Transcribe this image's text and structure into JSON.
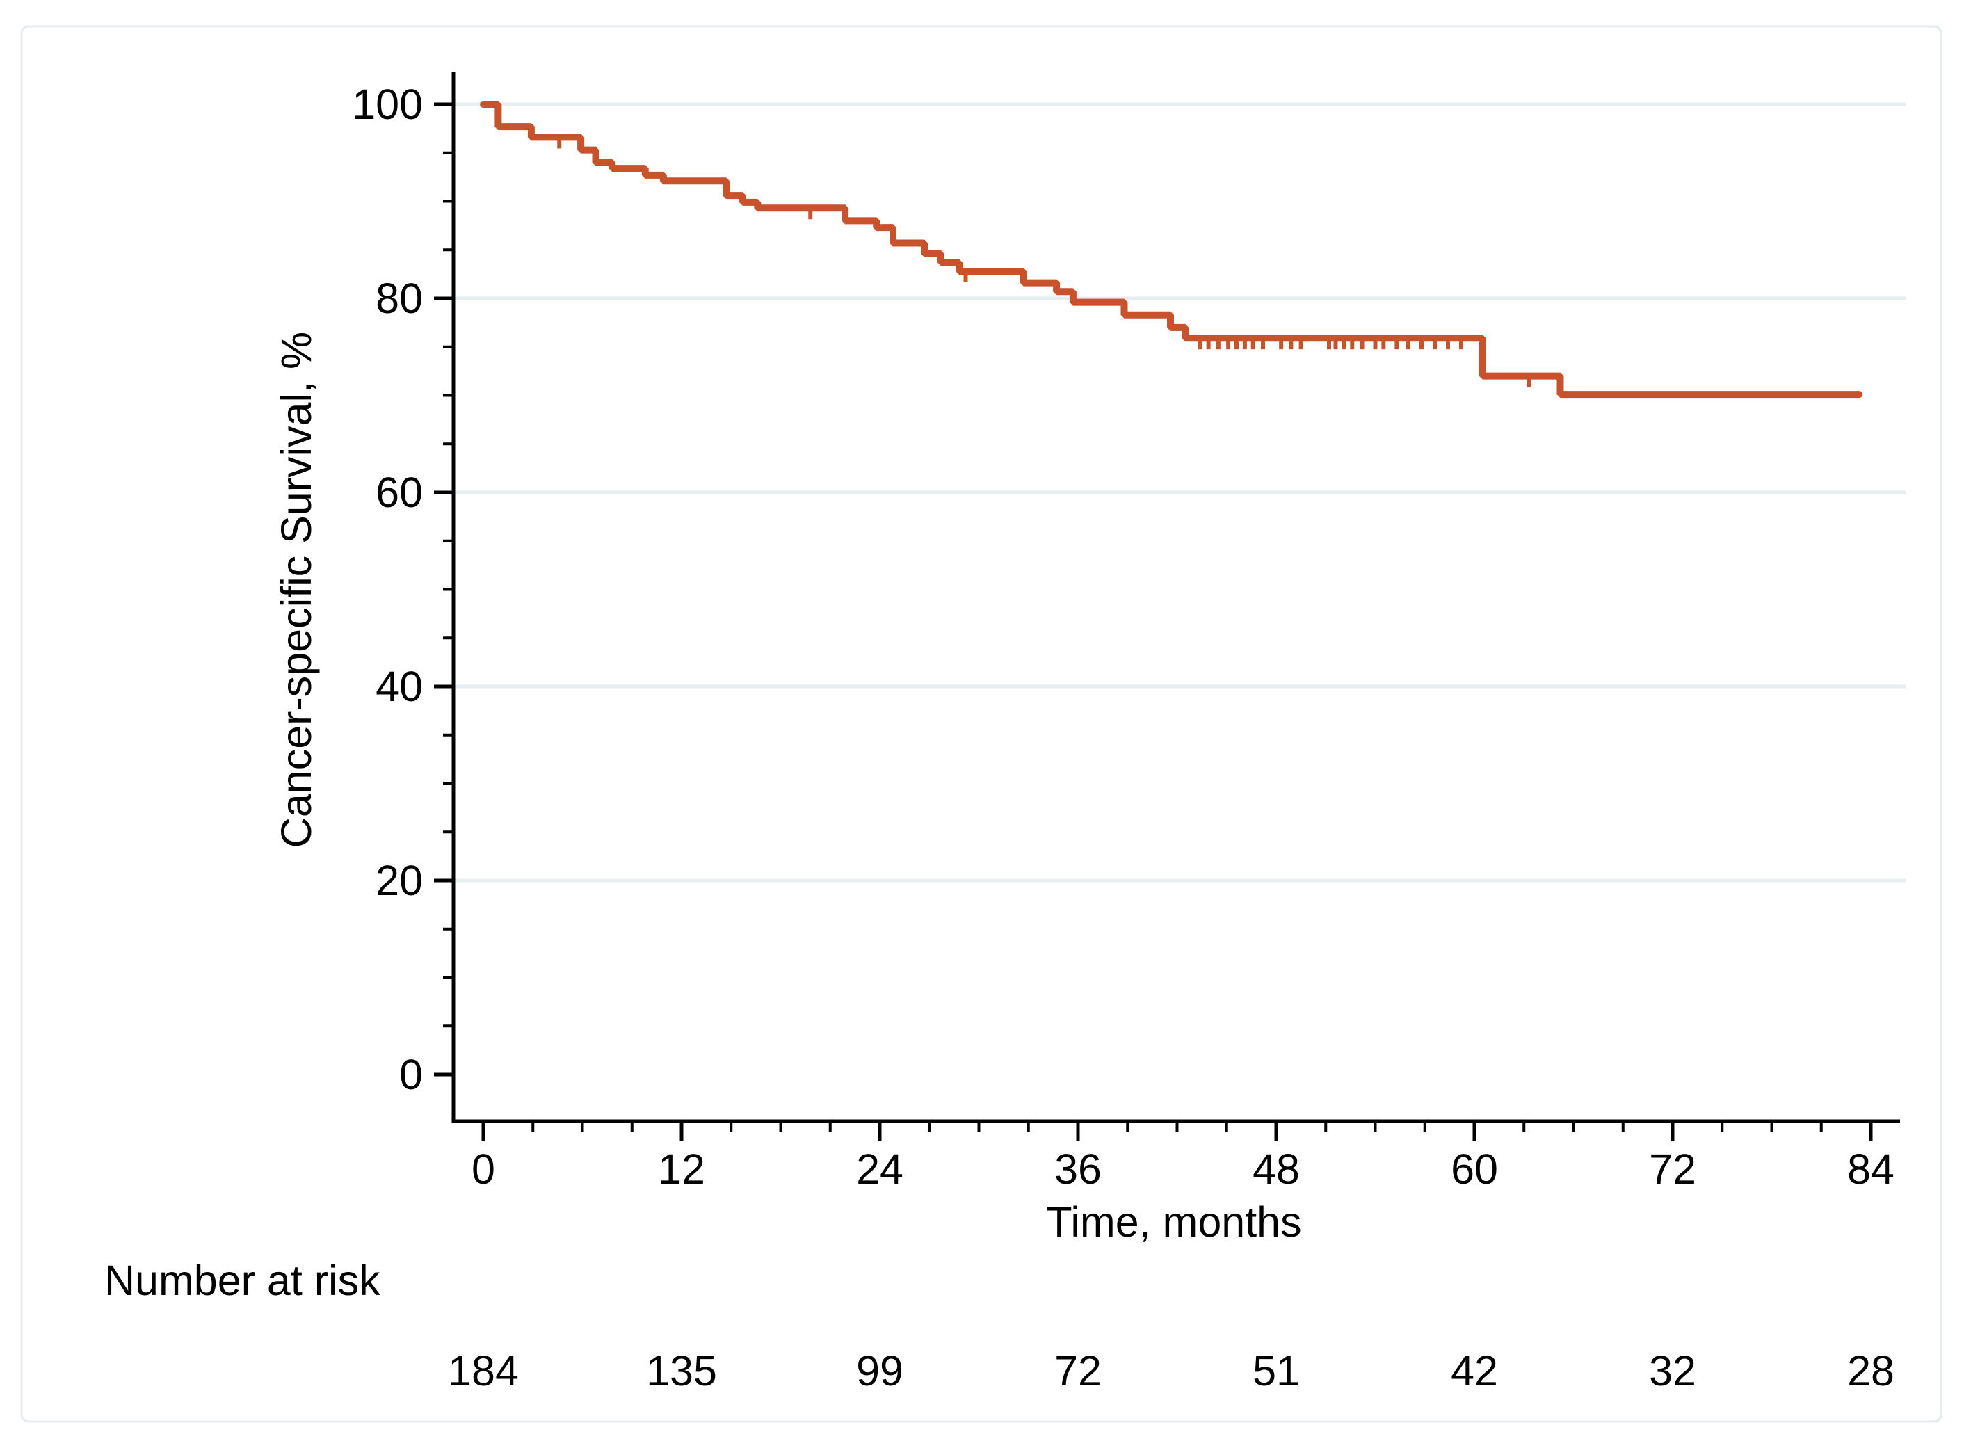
{
  "chart_data": {
    "type": "line",
    "subtype": "kaplan-meier-step",
    "title": "",
    "xlabel": "Time, months",
    "ylabel": "Cancer-specific Survival, %",
    "xlim": [
      0,
      84
    ],
    "ylim": [
      0,
      100
    ],
    "x_major_ticks": [
      0,
      12,
      24,
      36,
      48,
      60,
      72,
      84
    ],
    "x_major_tick_labels": [
      "0",
      "12",
      "24",
      "36",
      "48",
      "60",
      "72",
      "84"
    ],
    "x_minor_tick_interval": 3,
    "y_major_ticks": [
      0,
      20,
      40,
      60,
      80,
      100
    ],
    "y_major_tick_labels": [
      "0",
      "20",
      "40",
      "60",
      "80",
      "100"
    ],
    "y_minor_tick_interval": 5,
    "gridlines_y": [
      20,
      40,
      60,
      80,
      100
    ],
    "grid_on": true,
    "legend": "none",
    "series": [
      {
        "name": "Cancer-specific survival",
        "color": "#C7522B",
        "steps": [
          [
            0,
            100
          ],
          [
            0.9,
            97.7
          ],
          [
            2.9,
            96.6
          ],
          [
            5.9,
            95.3
          ],
          [
            6.8,
            94.0
          ],
          [
            7.8,
            93.4
          ],
          [
            9.8,
            92.7
          ],
          [
            10.9,
            92.1
          ],
          [
            14.7,
            90.6
          ],
          [
            15.7,
            89.9
          ],
          [
            16.6,
            89.3
          ],
          [
            21.9,
            88.0
          ],
          [
            23.8,
            87.3
          ],
          [
            24.8,
            85.7
          ],
          [
            26.7,
            84.6
          ],
          [
            27.7,
            83.7
          ],
          [
            28.8,
            82.8
          ],
          [
            32.7,
            81.6
          ],
          [
            34.7,
            80.7
          ],
          [
            35.7,
            79.6
          ],
          [
            38.8,
            78.3
          ],
          [
            41.6,
            77.0
          ],
          [
            42.5,
            75.9
          ],
          [
            60.5,
            72.0
          ],
          [
            65.2,
            70.1
          ]
        ],
        "end_month": 83.3,
        "censor_marks_months": [
          4.6,
          19.8,
          29.2,
          43.4,
          43.9,
          44.5,
          45.1,
          45.6,
          46.1,
          46.6,
          47.2,
          48.3,
          48.9,
          49.5,
          51.2,
          51.6,
          52.1,
          52.6,
          53.2,
          54.0,
          54.5,
          55.3,
          56.0,
          56.8,
          57.6,
          58.4,
          59.2,
          63.3
        ]
      }
    ],
    "risk_table": {
      "label": "Number at risk",
      "times": [
        0,
        12,
        24,
        36,
        48,
        60,
        72,
        84
      ],
      "counts": [
        "184",
        "135",
        "99",
        "72",
        "51",
        "42",
        "32",
        "28"
      ]
    }
  },
  "colors": {
    "curve": "#C7522B",
    "gridline": "#E6EEF1",
    "card_border": "#E4ECEF",
    "axis": "#000000",
    "text": "#000000",
    "background": "#FFFFFF"
  }
}
